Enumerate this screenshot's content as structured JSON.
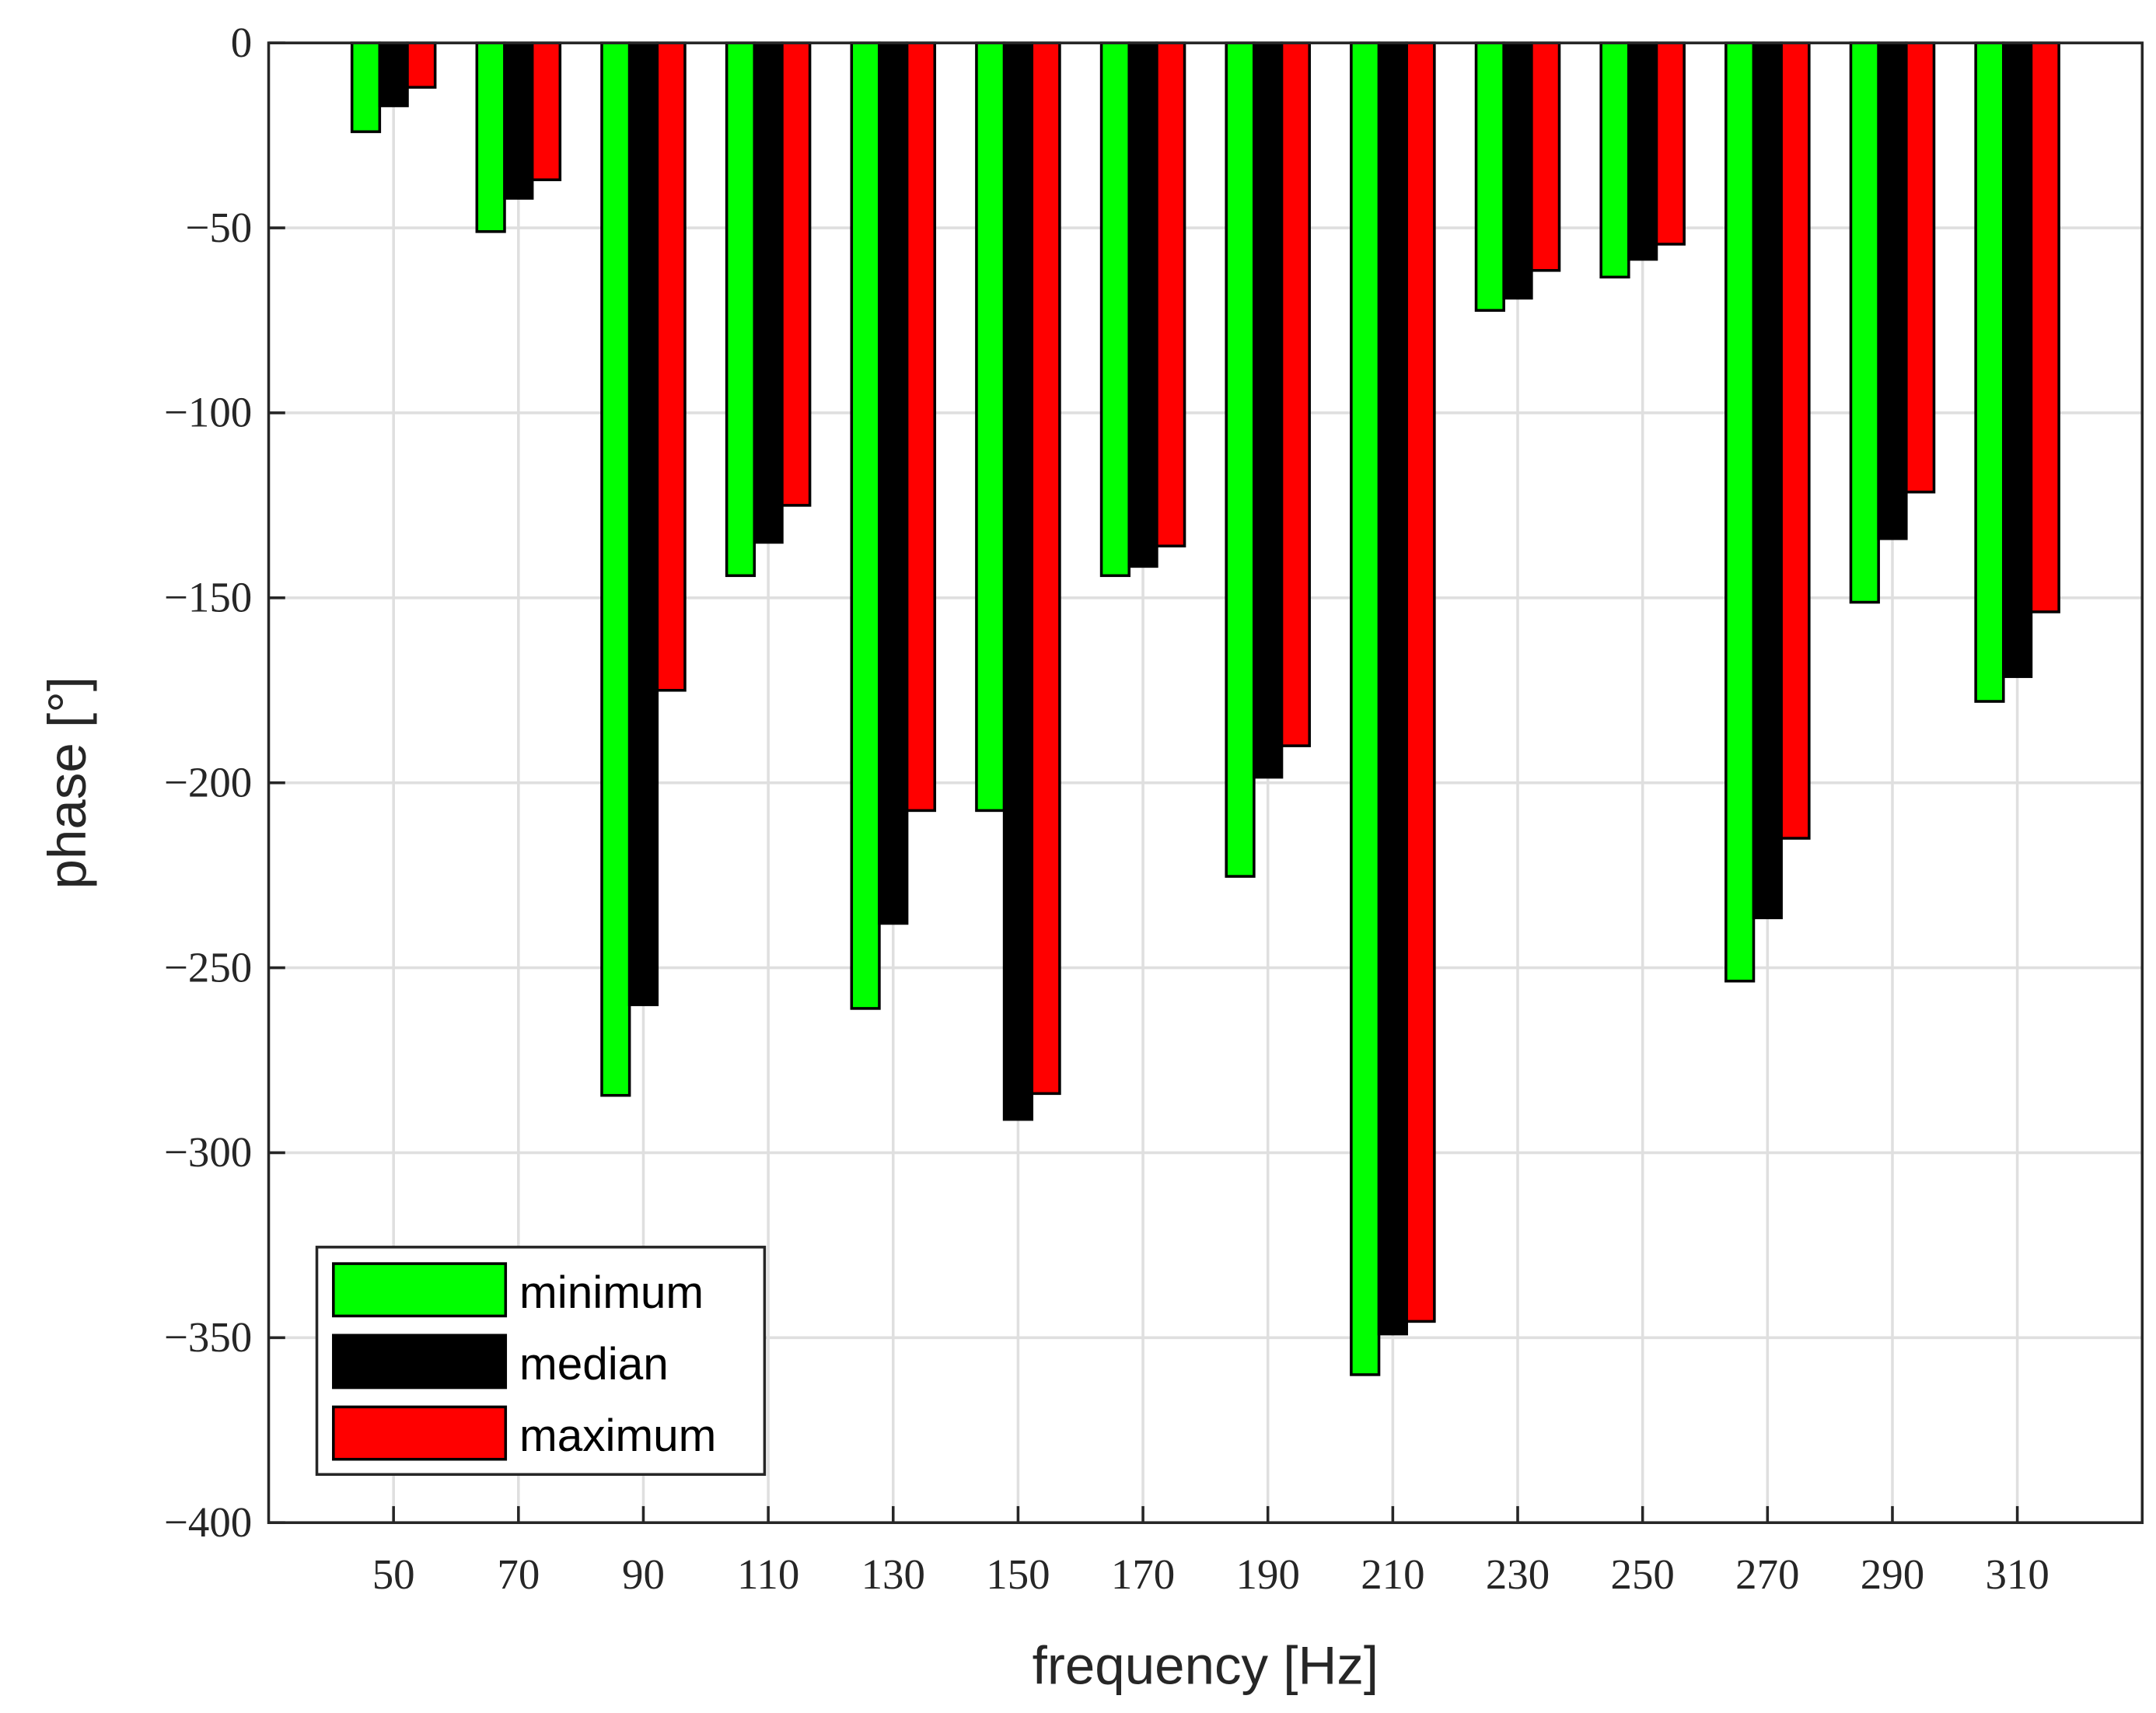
{
  "chart_data": {
    "type": "bar",
    "x_label": "frequency [Hz]",
    "y_label": "phase [°]",
    "x": [
      50,
      70,
      90,
      110,
      130,
      150,
      170,
      190,
      210,
      230,
      250,
      270,
      290,
      310
    ],
    "series": [
      {
        "name": "minimum",
        "color": "#00ff00",
        "values": [
          -24,
          -51,
          -284.5,
          -144,
          -261,
          -207.5,
          -144,
          -225.3,
          -360,
          -72.3,
          -63.3,
          -253.6,
          -151.2,
          -178
        ]
      },
      {
        "name": "median",
        "color": "#000000",
        "values": [
          -17,
          -42,
          -260,
          -135,
          -238,
          -291,
          -141.5,
          -198.5,
          -349,
          -69,
          -58.5,
          -236.5,
          -134,
          -171.3
        ]
      },
      {
        "name": "maximum",
        "color": "#ff0000",
        "values": [
          -12,
          -37,
          -175,
          -125,
          -207.5,
          -284,
          -136,
          -190,
          -345.6,
          -61.5,
          -54.4,
          -215,
          -121.4,
          -153.8
        ]
      }
    ],
    "xlim": [
      30,
      330
    ],
    "xticks": [
      50,
      70,
      90,
      110,
      130,
      150,
      170,
      190,
      210,
      230,
      250,
      270,
      290,
      310
    ],
    "ylim": [
      -400,
      0
    ],
    "yticks": [
      {
        "value": -400,
        "label": "−400"
      },
      {
        "value": -350,
        "label": "−350"
      },
      {
        "value": -300,
        "label": "−300"
      },
      {
        "value": -250,
        "label": "−250"
      },
      {
        "value": -200,
        "label": "−200"
      },
      {
        "value": -150,
        "label": "−150"
      },
      {
        "value": -100,
        "label": "−100"
      },
      {
        "value": -50,
        "label": "−50"
      },
      0
    ],
    "grid": true,
    "legend": "lower left"
  }
}
